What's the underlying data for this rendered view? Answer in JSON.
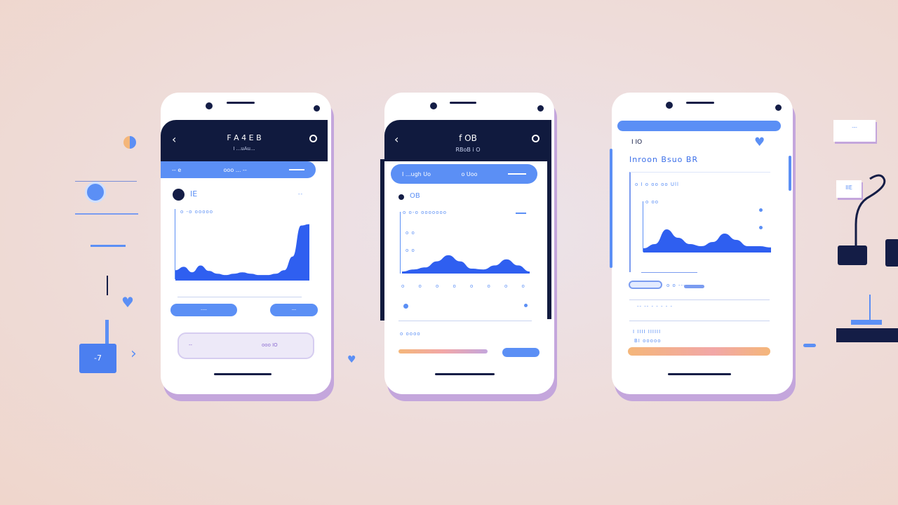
{
  "colors": {
    "navy": "#101a3e",
    "blue": "#5b8ff5",
    "chart": "#2f5ff0",
    "lavender": "#c4a6dc",
    "orange": "#f4b67a"
  },
  "phone1": {
    "title": "F A 4 E B",
    "subtitle": "I ...uAu...",
    "pill_left": "-- e",
    "pill_mid": "ooo ... --",
    "section": "IE",
    "section_right": "--",
    "chart_label": "o -o ooooo",
    "button_left": "----",
    "button_right": "---",
    "card_left": "--",
    "card_right": "ooo  IO",
    "series": [
      0.15,
      0.2,
      0.12,
      0.22,
      0.14,
      0.1,
      0.08,
      0.1,
      0.12,
      0.1,
      0.08,
      0.08,
      0.1,
      0.15,
      0.35,
      0.8,
      0.82
    ]
  },
  "phone2": {
    "title": "f OB",
    "subtitle": "RBoB i O",
    "pill_left": "I ...ugh Uo",
    "pill_mid": "o Uoo",
    "section": "OB",
    "chart_label": "o o-o ooooooo",
    "axis_labels": [
      "o o",
      "o o"
    ],
    "card_label": "o oooo",
    "series": [
      0.05,
      0.1,
      0.15,
      0.3,
      0.45,
      0.3,
      0.12,
      0.1,
      0.2,
      0.35,
      0.2,
      0.05
    ]
  },
  "phone3": {
    "status": "I IO",
    "title": "Inroon Bsuo BR",
    "chart_label": "o I o oo oo Ull",
    "axis_label": "o oo",
    "link": "o o  ----",
    "meta": "-- -- - - - - -",
    "card_label": "I IIII IIIIII",
    "card_sub": "BI ooooo",
    "series": [
      0.1,
      0.2,
      0.55,
      0.35,
      0.2,
      0.15,
      0.25,
      0.45,
      0.3,
      0.15,
      0.15,
      0.12
    ]
  },
  "decor": {
    "card1": "---",
    "card2": "IIE",
    "square": "-7"
  }
}
